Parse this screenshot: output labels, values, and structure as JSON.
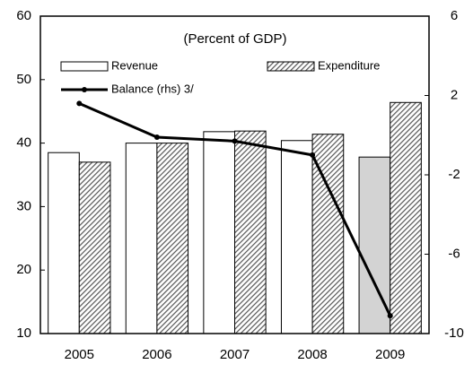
{
  "chart_data": {
    "type": "bar",
    "subtitle": "(Percent of GDP)",
    "categories": [
      "2005",
      "2006",
      "2007",
      "2008",
      "2009"
    ],
    "series": [
      {
        "name": "Revenue",
        "color": "#ffffff",
        "colors": [
          "#ffffff",
          "#ffffff",
          "#ffffff",
          "#ffffff",
          "#d3d3d3"
        ],
        "values": [
          38.5,
          40.0,
          41.8,
          40.4,
          37.8
        ]
      },
      {
        "name": "Expenditure",
        "color": "#999999",
        "hatch": true,
        "values": [
          37.0,
          40.0,
          41.9,
          41.4,
          46.4
        ]
      },
      {
        "name": "Balance (rhs) 3/",
        "type": "line",
        "axis": "y2",
        "color": "#000000",
        "values": [
          1.6,
          -0.1,
          -0.3,
          -1.0,
          -9.1
        ]
      }
    ],
    "ylim": [
      10,
      60
    ],
    "yticks": [
      10,
      20,
      30,
      40,
      50,
      60
    ],
    "y2lim": [
      -10,
      6
    ],
    "y2ticks": [
      -10,
      -6,
      -2,
      2,
      6
    ]
  }
}
